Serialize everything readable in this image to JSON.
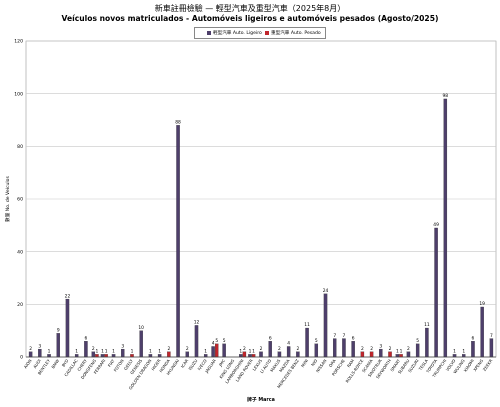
{
  "header": {
    "title": "新車註冊檢驗 — 輕型汽車及重型汽車（2025年8月）",
    "subtitle": "Veículos novos matriculados  - Automóveis ligeiros e automóveis pesados (Agosto/2025)"
  },
  "colors": {
    "light": "#4e3f6b",
    "heavy": "#c0262c",
    "grid": "#c8c8c8",
    "axis": "#444444"
  },
  "chart_data": {
    "type": "bar",
    "ylabel": "數量 No. de Veículos",
    "xlabel": "牌子 Marca",
    "ylim": [
      0,
      120
    ],
    "yticks": [
      0,
      20,
      40,
      60,
      80,
      100,
      120
    ],
    "grid": true,
    "legend_position": "top-center",
    "categories": [
      "AION",
      "AUDI",
      "BENTLEY",
      "BMW",
      "BYD",
      "CADILLAC",
      "CHERY",
      "DONGFENG",
      "FERRARI",
      "FIAT",
      "FOTON",
      "GEELY",
      "GENESIS",
      "GOLDEN DRAGON",
      "HIGER",
      "HONDA",
      "HYUNDAI",
      "ICAR",
      "ISUZU",
      "IVECO",
      "JAGUAR",
      "JMC",
      "KING LONG",
      "LAMBORGHINI",
      "LAND ROVER",
      "LEXUS",
      "LI AUTO",
      "MAXUS",
      "MAZDA",
      "MERCEDES BENZ",
      "MINI",
      "NIO",
      "NISSAN",
      "ORA",
      "PORSCHE",
      "RAM",
      "ROLLS-ROYCE",
      "SCANIA",
      "SINOTRUK",
      "SKYWORTH",
      "SMART",
      "SUBARU",
      "SUZUKI",
      "TESLA",
      "TOYOTA",
      "TRUMPCHI",
      "VOLVO",
      "WULING",
      "XIAOMI",
      "XPENG",
      "ZEEKR"
    ],
    "series": [
      {
        "name": "輕型汽車 Auto. Ligeiro",
        "values": [
          2,
          3,
          1,
          9,
          22,
          1,
          6,
          2,
          1,
          1,
          3,
          0,
          10,
          1,
          1,
          0,
          88,
          2,
          12,
          1,
          4,
          5,
          0,
          1,
          1,
          2,
          6,
          2,
          4,
          2,
          11,
          5,
          24,
          7,
          7,
          6,
          0,
          0,
          3,
          0,
          1,
          2,
          5,
          11,
          49,
          98,
          1,
          1,
          6,
          19,
          7
        ]
      },
      {
        "name": "重型汽車 Auto. Pesado",
        "values": [
          0,
          0,
          0,
          0,
          0,
          0,
          0,
          1,
          1,
          0,
          0,
          1,
          0,
          0,
          0,
          2,
          0,
          0,
          0,
          0,
          5,
          0,
          0,
          2,
          1,
          0,
          0,
          0,
          0,
          0,
          0,
          0,
          0,
          0,
          0,
          0,
          2,
          2,
          0,
          2,
          1,
          0,
          0,
          0,
          0,
          0,
          0,
          0,
          0,
          0,
          0
        ]
      }
    ]
  }
}
